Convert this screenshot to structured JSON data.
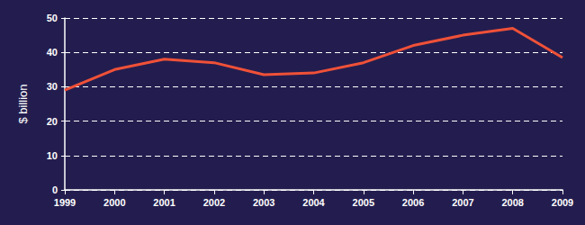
{
  "chart_data": {
    "type": "line",
    "ylabel": "$ billion",
    "categories": [
      "1999",
      "2000",
      "2001",
      "2002",
      "2003",
      "2004",
      "2005",
      "2006",
      "2007",
      "2008",
      "2009"
    ],
    "values": [
      29,
      35,
      38,
      37,
      33.5,
      34,
      37,
      42,
      45,
      47,
      38.5
    ],
    "color": "#ef5138",
    "ylim": [
      0,
      50
    ],
    "yticks": [
      0,
      10,
      20,
      30,
      40,
      50
    ],
    "grid": true
  }
}
